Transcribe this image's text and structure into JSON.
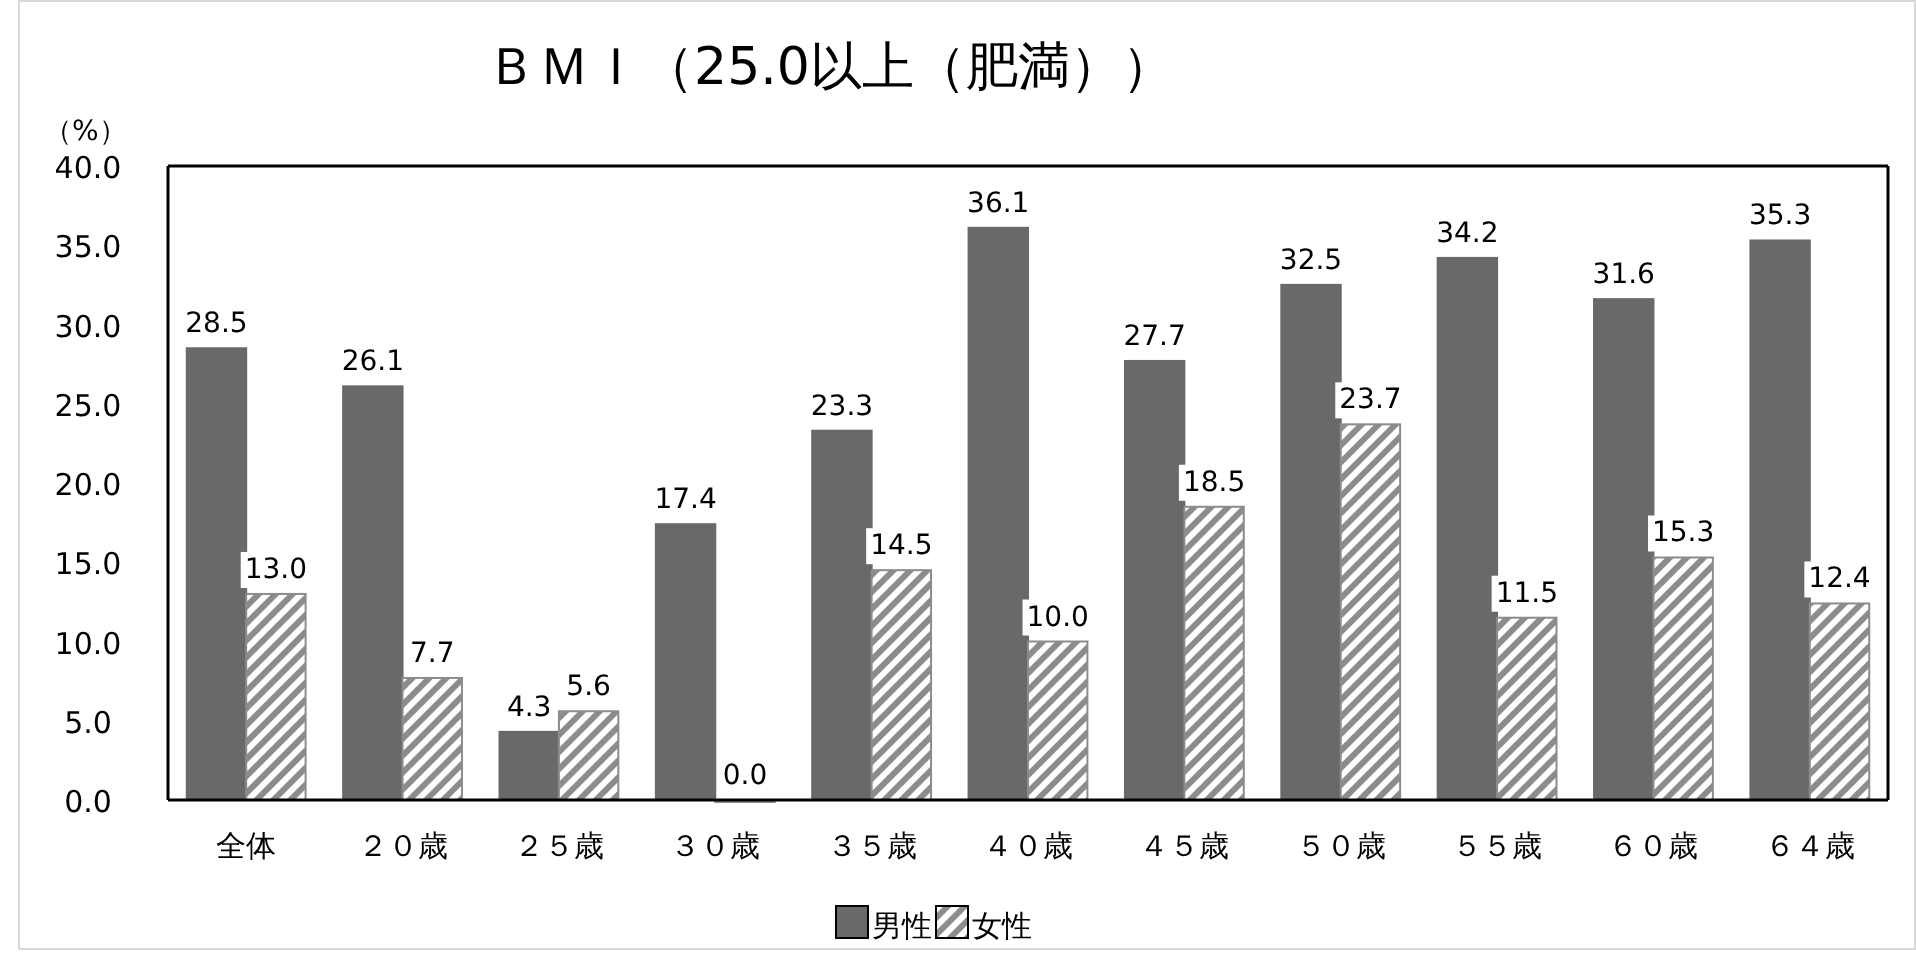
{
  "chart_data": {
    "type": "bar",
    "title": "ＢＭＩ（25.0以上（肥満））",
    "ylabel": "（%）",
    "categories": [
      "全体",
      "２０歳",
      "２５歳",
      "３０歳",
      "３５歳",
      "４０歳",
      "４５歳",
      "５０歳",
      "５５歳",
      "６０歳",
      "６４歳"
    ],
    "series": [
      {
        "name": "男性",
        "color": "#696969",
        "values": [
          28.5,
          26.1,
          4.3,
          17.4,
          23.3,
          36.1,
          27.7,
          32.5,
          34.2,
          31.6,
          35.3
        ],
        "value_labels": [
          "28.5",
          "26.1",
          "4.3",
          "17.4",
          "23.3",
          "36.1",
          "27.7",
          "32.5",
          "34.2",
          "31.6",
          "35.3"
        ]
      },
      {
        "name": "女性",
        "color": "#8c8c8c",
        "values": [
          13.0,
          7.7,
          5.6,
          0.0,
          14.5,
          10.0,
          18.5,
          23.7,
          11.5,
          15.3,
          12.4
        ],
        "value_labels": [
          "13.0",
          "7.7",
          "5.6",
          "0.0",
          "14.5",
          "10.0",
          "18.5",
          "23.7",
          "11.5",
          "15.3",
          "12.4"
        ]
      }
    ],
    "ylim": [
      0,
      40
    ],
    "yticks": [
      {
        "value": 0,
        "label": "0.0"
      },
      {
        "value": 5,
        "label": "5.0"
      },
      {
        "value": 10,
        "label": "10.0"
      },
      {
        "value": 15,
        "label": "15.0"
      },
      {
        "value": 20,
        "label": "20.0"
      },
      {
        "value": 25,
        "label": "25.0"
      },
      {
        "value": 30,
        "label": "30.0"
      },
      {
        "value": 35,
        "label": "35.0"
      },
      {
        "value": 40,
        "label": "40.0"
      }
    ],
    "grid": false,
    "legend": "bottom"
  }
}
